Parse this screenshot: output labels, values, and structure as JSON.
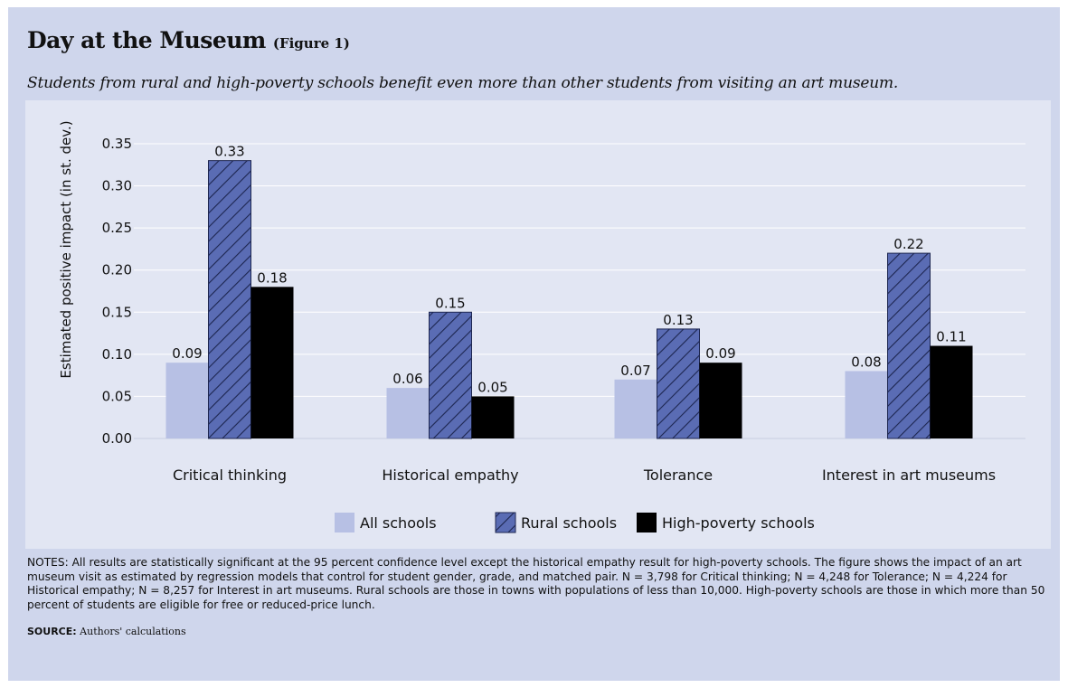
{
  "header": {
    "title": "Day at the Museum",
    "figure_label": "(Figure 1)",
    "subtitle": "Students from rural and high-poverty schools benefit even more than other students from visiting an art museum."
  },
  "chart_data": {
    "type": "bar",
    "categories": [
      "Critical thinking",
      "Historical empathy",
      "Tolerance",
      "Interest in art museums"
    ],
    "series": [
      {
        "name": "All schools",
        "values": [
          0.09,
          0.06,
          0.07,
          0.08
        ],
        "color": "#b7c0e4",
        "pattern": "solid"
      },
      {
        "name": "Rural schools",
        "values": [
          0.33,
          0.15,
          0.13,
          0.22
        ],
        "color": "#5a6cb4",
        "pattern": "hatched"
      },
      {
        "name": "High-poverty schools",
        "values": [
          0.18,
          0.05,
          0.09,
          0.11
        ],
        "color": "#000000",
        "pattern": "solid"
      }
    ],
    "data_labels": [
      [
        "0.09",
        "0.06",
        "0.07",
        "0.08"
      ],
      [
        "0.33",
        "0.15",
        "0.13",
        "0.22"
      ],
      [
        "0.18",
        "0.05",
        "0.09",
        "0.11"
      ]
    ],
    "ylabel": "Estimated positive impact (in st. dev.)",
    "xlabel": "",
    "ylim": [
      0,
      0.35
    ],
    "yticks": [
      "0.00",
      "0.05",
      "0.10",
      "0.15",
      "0.20",
      "0.25",
      "0.30",
      "0.35"
    ],
    "grid": true,
    "legend_position": "bottom-center"
  },
  "notes": "NOTES: All results are statistically significant at the 95 percent confidence level except the historical empathy result for high-poverty schools. The figure shows the impact of an art museum visit as estimated by regression models that control for student gender, grade, and matched pair. N = 3,798 for Critical thinking; N = 4,248 for Tolerance; N = 4,224 for Historical empathy; N = 8,257 for Interest in art museums. Rural schools are those in towns with populations of less than 10,000. High-poverty schools are those in which more than 50 percent of students are eligible for free or reduced-price lunch.",
  "source": {
    "label": "SOURCE:",
    "text": "Authors' calculations"
  }
}
